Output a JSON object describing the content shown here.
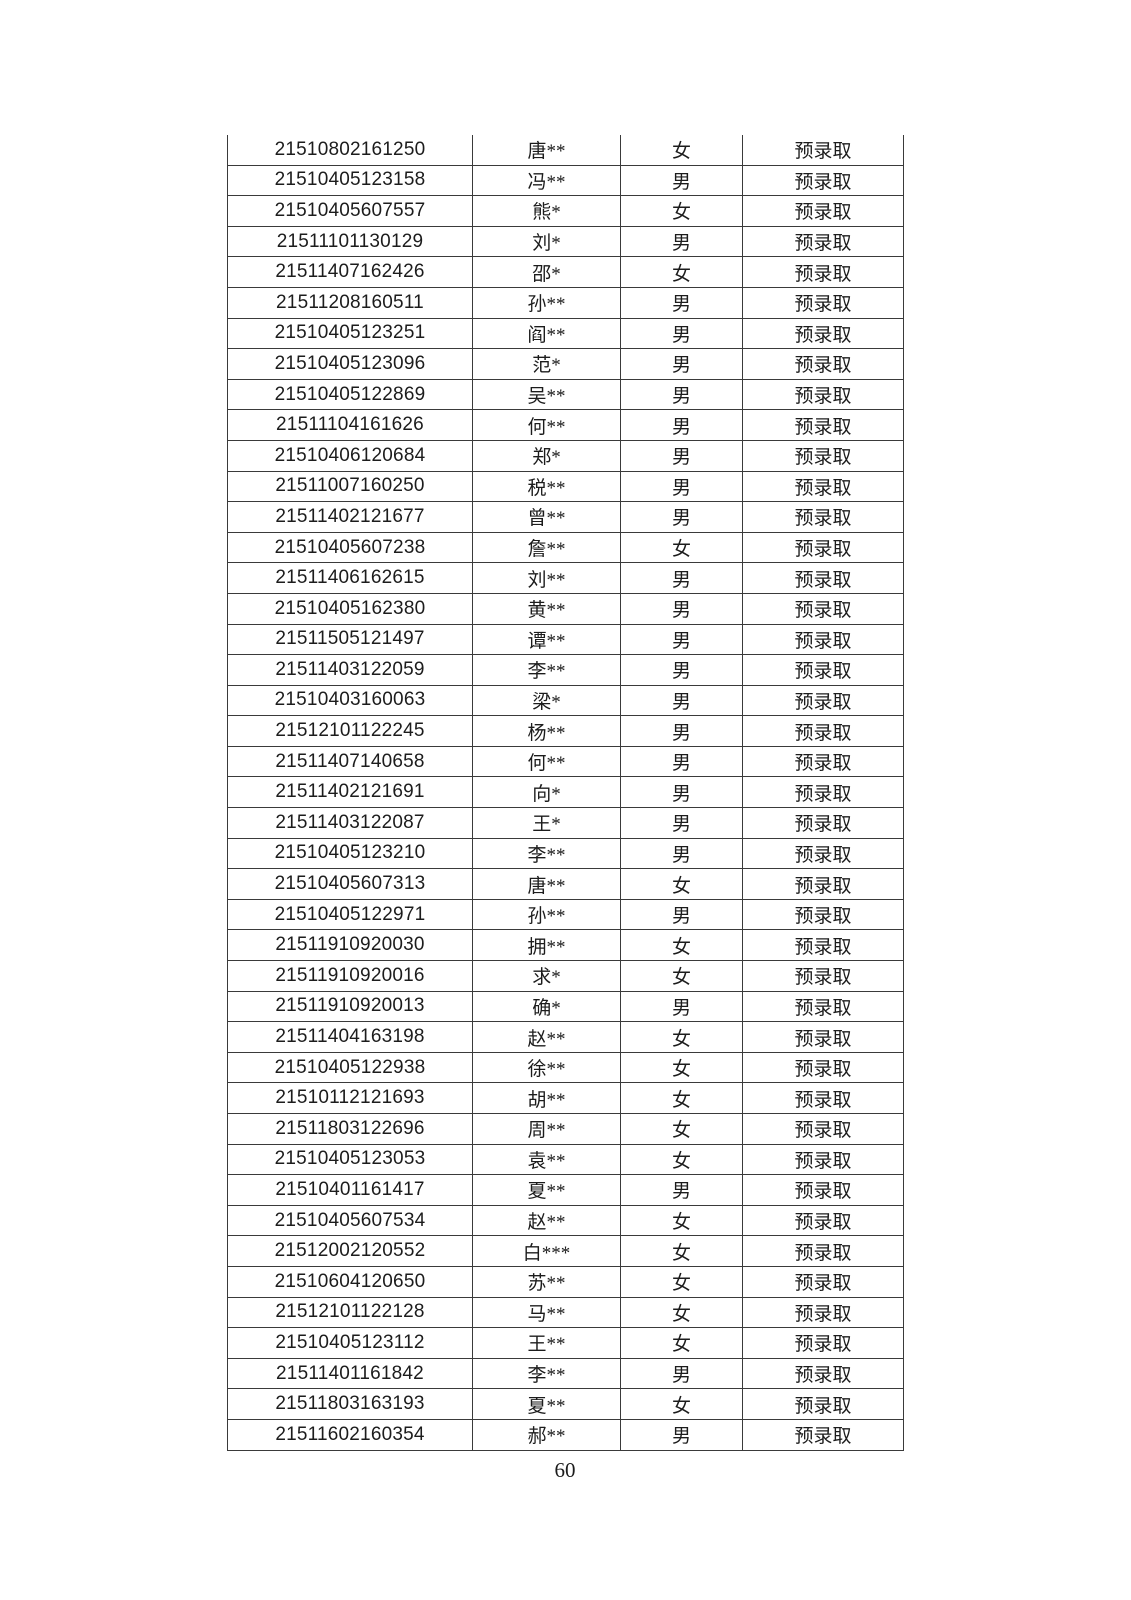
{
  "page": {
    "number": "60",
    "background_color": "#ffffff",
    "text_color": "#1c1c1c",
    "grid_color": "#3a3a3a"
  },
  "table": {
    "fields": [
      "student_id",
      "name",
      "gender",
      "status"
    ],
    "rows": [
      [
        "21510802161250",
        "唐**",
        "女",
        "预录取"
      ],
      [
        "21510405123158",
        "冯**",
        "男",
        "预录取"
      ],
      [
        "21510405607557",
        "熊*",
        "女",
        "预录取"
      ],
      [
        "21511101130129",
        "刘*",
        "男",
        "预录取"
      ],
      [
        "21511407162426",
        "邵*",
        "女",
        "预录取"
      ],
      [
        "21511208160511",
        "孙**",
        "男",
        "预录取"
      ],
      [
        "21510405123251",
        "阎**",
        "男",
        "预录取"
      ],
      [
        "21510405123096",
        "范*",
        "男",
        "预录取"
      ],
      [
        "21510405122869",
        "吴**",
        "男",
        "预录取"
      ],
      [
        "21511104161626",
        "何**",
        "男",
        "预录取"
      ],
      [
        "21510406120684",
        "郑*",
        "男",
        "预录取"
      ],
      [
        "21511007160250",
        "税**",
        "男",
        "预录取"
      ],
      [
        "21511402121677",
        "曾**",
        "男",
        "预录取"
      ],
      [
        "21510405607238",
        "詹**",
        "女",
        "预录取"
      ],
      [
        "21511406162615",
        "刘**",
        "男",
        "预录取"
      ],
      [
        "21510405162380",
        "黄**",
        "男",
        "预录取"
      ],
      [
        "21511505121497",
        "谭**",
        "男",
        "预录取"
      ],
      [
        "21511403122059",
        "李**",
        "男",
        "预录取"
      ],
      [
        "21510403160063",
        "梁*",
        "男",
        "预录取"
      ],
      [
        "21512101122245",
        "杨**",
        "男",
        "预录取"
      ],
      [
        "21511407140658",
        "何**",
        "男",
        "预录取"
      ],
      [
        "21511402121691",
        "向*",
        "男",
        "预录取"
      ],
      [
        "21511403122087",
        "王*",
        "男",
        "预录取"
      ],
      [
        "21510405123210",
        "李**",
        "男",
        "预录取"
      ],
      [
        "21510405607313",
        "唐**",
        "女",
        "预录取"
      ],
      [
        "21510405122971",
        "孙**",
        "男",
        "预录取"
      ],
      [
        "21511910920030",
        "拥**",
        "女",
        "预录取"
      ],
      [
        "21511910920016",
        "求*",
        "女",
        "预录取"
      ],
      [
        "21511910920013",
        "确*",
        "男",
        "预录取"
      ],
      [
        "21511404163198",
        "赵**",
        "女",
        "预录取"
      ],
      [
        "21510405122938",
        "徐**",
        "女",
        "预录取"
      ],
      [
        "21510112121693",
        "胡**",
        "女",
        "预录取"
      ],
      [
        "21511803122696",
        "周**",
        "女",
        "预录取"
      ],
      [
        "21510405123053",
        "袁**",
        "女",
        "预录取"
      ],
      [
        "21510401161417",
        "夏**",
        "男",
        "预录取"
      ],
      [
        "21510405607534",
        "赵**",
        "女",
        "预录取"
      ],
      [
        "21512002120552",
        "白***",
        "女",
        "预录取"
      ],
      [
        "21510604120650",
        "苏**",
        "女",
        "预录取"
      ],
      [
        "21512101122128",
        "马**",
        "女",
        "预录取"
      ],
      [
        "21510405123112",
        "王**",
        "女",
        "预录取"
      ],
      [
        "21511401161842",
        "李**",
        "男",
        "预录取"
      ],
      [
        "21511803163193",
        "夏**",
        "女",
        "预录取"
      ],
      [
        "21511602160354",
        "郝**",
        "男",
        "预录取"
      ]
    ]
  }
}
